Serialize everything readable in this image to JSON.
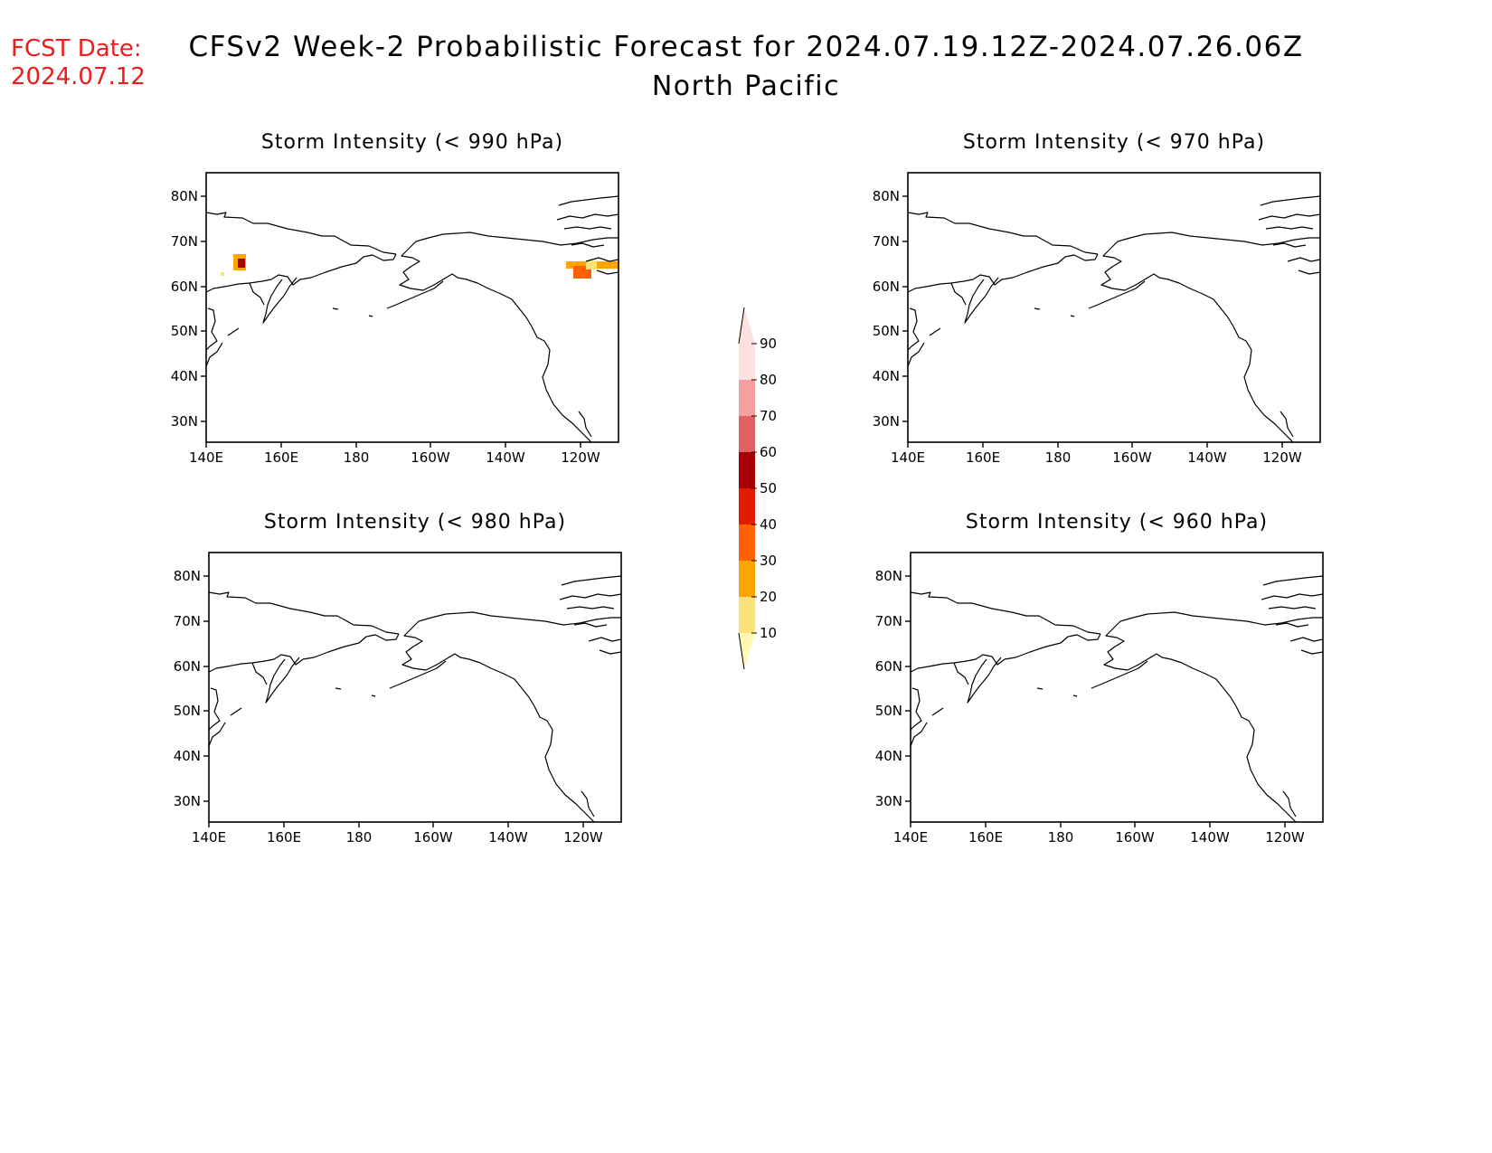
{
  "header": {
    "fcst_label": "FCST Date:",
    "fcst_date": "2024.07.12",
    "title": "CFSv2 Week-2 Probabilistic Forecast for 2024.07.19.12Z-2024.07.26.06Z",
    "region": "North Pacific"
  },
  "axes": {
    "lat_labels": [
      "80N",
      "70N",
      "60N",
      "50N",
      "40N",
      "30N"
    ],
    "lon_labels": [
      "140E",
      "160E",
      "180",
      "160W",
      "140W",
      "120W"
    ]
  },
  "panels": [
    {
      "id": "p990",
      "title": "Storm Intensity (< 990 hPa)"
    },
    {
      "id": "p970",
      "title": "Storm Intensity (< 970 hPa)"
    },
    {
      "id": "p980",
      "title": "Storm Intensity (< 980 hPa)"
    },
    {
      "id": "p960",
      "title": "Storm Intensity (< 960 hPa)"
    }
  ],
  "colorbar": {
    "levels": [
      "10",
      "20",
      "30",
      "40",
      "50",
      "60",
      "70",
      "80",
      "90"
    ],
    "colors": [
      "#fff9b5",
      "#fbe17a",
      "#fca500",
      "#fe6300",
      "#e21b00",
      "#a60000",
      "#e06260",
      "#f5a0a0",
      "#fde0e0"
    ]
  }
}
